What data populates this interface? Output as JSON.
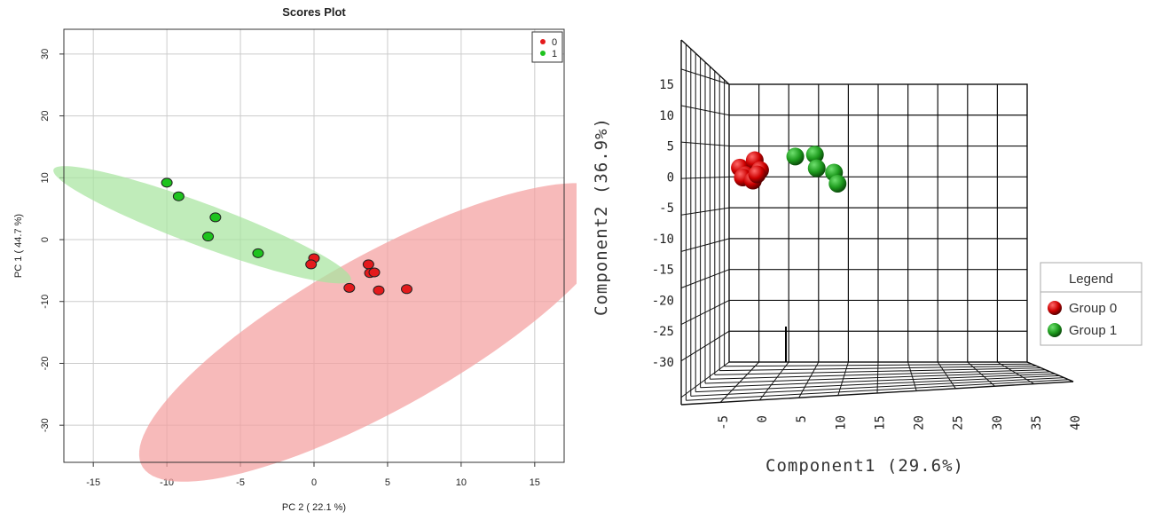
{
  "chart_data": [
    {
      "type": "scatter",
      "title": "Scores Plot",
      "xlabel": "PC 2 ( 22.1 %)",
      "ylabel": "PC 1 ( 44.7 %)",
      "xlim": [
        -17,
        17
      ],
      "ylim": [
        -36,
        34
      ],
      "xticks": [
        -15,
        -10,
        -5,
        0,
        5,
        10,
        15
      ],
      "yticks": [
        30,
        20,
        10,
        0,
        -10,
        -20,
        -30
      ],
      "grid": true,
      "legend_position": "top-right",
      "series": [
        {
          "name": "0",
          "color": "#e41a1c",
          "points": [
            [
              0.0,
              -3.0
            ],
            [
              -0.2,
              -4.0
            ],
            [
              3.7,
              -4.0
            ],
            [
              3.8,
              -5.4
            ],
            [
              4.1,
              -5.3
            ],
            [
              2.4,
              -7.8
            ],
            [
              4.4,
              -8.2
            ],
            [
              6.3,
              -8.0
            ]
          ],
          "ellipse": {
            "center": [
              4.5,
              -15.0
            ],
            "half_major": 28.0,
            "half_minor": 8.2,
            "angle_deg": 58.0,
            "fill": "#f4a0a0"
          }
        },
        {
          "name": "1",
          "color": "#1ec31e",
          "points": [
            [
              -10.0,
              9.2
            ],
            [
              -9.2,
              7.0
            ],
            [
              -6.7,
              3.6
            ],
            [
              -7.2,
              0.5
            ],
            [
              -3.8,
              -2.2
            ]
          ],
          "ellipse": {
            "center": [
              -7.6,
              2.4
            ],
            "half_major": 13.6,
            "half_minor": 2.7,
            "angle_deg": -43.0,
            "fill": "#a8e5a0"
          }
        }
      ]
    },
    {
      "type": "scatter",
      "subtype": "3d",
      "xlabel": "Component1 (29.6%)",
      "ylabel": "Component2 (36.9%)",
      "xticks": [
        "-5",
        "0",
        "5",
        "10",
        "15",
        "20",
        "25",
        "30",
        "35",
        "40"
      ],
      "yticks": [
        "15",
        "10",
        "5",
        "0",
        "-5",
        "-10",
        "-15",
        "-20",
        "-25",
        "-30"
      ],
      "ylim": [
        -30,
        15
      ],
      "legend_title": "Legend",
      "legend_position": "right",
      "series": [
        {
          "name": "Group 0",
          "color": "#cc0000",
          "points": [
            [
              -3.8,
              1.5
            ],
            [
              -2.8,
              0.3
            ],
            [
              -1.3,
              2.7
            ],
            [
              -0.4,
              1.1
            ],
            [
              -3.3,
              -0.1
            ],
            [
              -1.6,
              -0.6
            ],
            [
              -0.9,
              0.4
            ]
          ]
        },
        {
          "name": "Group 1",
          "color": "#1e9b1e",
          "points": [
            [
              5.5,
              3.3
            ],
            [
              8.8,
              3.6
            ],
            [
              9.1,
              1.4
            ],
            [
              12.0,
              0.7
            ],
            [
              12.6,
              -1.1
            ]
          ]
        }
      ]
    }
  ]
}
